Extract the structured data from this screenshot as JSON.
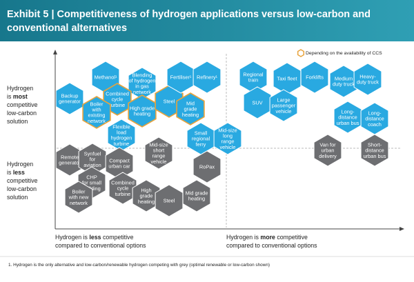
{
  "header": {
    "title_lines": [
      "Exhibit 5 | Competitiveness of hydrogen applications versus low-carbon and",
      "conventional alternatives"
    ]
  },
  "legend": {
    "label": "Depending on the availability of CCS",
    "color": "#e8a33c"
  },
  "y_axis": {
    "top": [
      "Hydrogen",
      "is",
      "most",
      "competitive",
      "low-carbon",
      "solution"
    ],
    "bottom": [
      "Hydrogen",
      "is",
      "less",
      "competitive",
      "low-carbon",
      "solution"
    ]
  },
  "x_axis": {
    "left": [
      "Hydrogen is",
      "less",
      "competitive",
      "compared to conventional options"
    ],
    "right": [
      "Hydrogen is",
      "more",
      "competitive",
      "compared to conventional options"
    ]
  },
  "nodes": [
    {
      "lines": [
        "Backup",
        "generator"
      ],
      "color": "#29a9e1",
      "ccs": false
    },
    {
      "lines": [
        "Methanol¹"
      ],
      "color": "#29a9e1",
      "ccs": false
    },
    {
      "lines": [
        "Blending",
        "of hydrogen",
        "in gas",
        "network"
      ],
      "color": "#29a9e1",
      "ccs": false
    },
    {
      "lines": [
        "Combined",
        "cycle",
        "turbine"
      ],
      "color": "#29a9e1",
      "ccs": true
    },
    {
      "lines": [
        "Boiler",
        "with",
        "existing",
        "network"
      ],
      "color": "#29a9e1",
      "ccs": true
    },
    {
      "lines": [
        "High grade",
        "heating"
      ],
      "color": "#29a9e1",
      "ccs": true
    },
    {
      "lines": [
        "Steel"
      ],
      "color": "#29a9e1",
      "ccs": true
    },
    {
      "lines": [
        "Fertiliser¹"
      ],
      "color": "#29a9e1",
      "ccs": false
    },
    {
      "lines": [
        "Refinery¹"
      ],
      "color": "#29a9e1",
      "ccs": false
    },
    {
      "lines": [
        "Mid",
        "grade",
        "heating"
      ],
      "color": "#29a9e1",
      "ccs": true
    },
    {
      "lines": [
        "Flexible",
        "load",
        "hydrogen",
        "turbine"
      ],
      "color": "#29a9e1",
      "ccs": false
    },
    {
      "lines": [
        "Small",
        "regional",
        "ferry"
      ],
      "color": "#29a9e1",
      "ccs": false
    },
    {
      "lines": [
        "Mid-size",
        "long",
        "range",
        "vehicle"
      ],
      "color": "#29a9e1",
      "ccs": false
    },
    {
      "lines": [
        "Regional",
        "train"
      ],
      "color": "#29a9e1",
      "ccs": false
    },
    {
      "lines": [
        "Taxi fleet"
      ],
      "color": "#29a9e1",
      "ccs": false
    },
    {
      "lines": [
        "Forklifts"
      ],
      "color": "#29a9e1",
      "ccs": false
    },
    {
      "lines": [
        "Medium",
        "duty truck"
      ],
      "color": "#29a9e1",
      "ccs": false
    },
    {
      "lines": [
        "Heavy-",
        "duty truck"
      ],
      "color": "#29a9e1",
      "ccs": false
    },
    {
      "lines": [
        "SUV"
      ],
      "color": "#29a9e1",
      "ccs": false
    },
    {
      "lines": [
        "Large",
        "passenger",
        "vehicle"
      ],
      "color": "#29a9e1",
      "ccs": false
    },
    {
      "lines": [
        "Long-",
        "distance",
        "urban bus"
      ],
      "color": "#29a9e1",
      "ccs": false
    },
    {
      "lines": [
        "Long-",
        "distance",
        "coach"
      ],
      "color": "#29a9e1",
      "ccs": false
    },
    {
      "lines": [
        "Remote",
        "generator"
      ],
      "color": "#6d6e71",
      "ccs": false
    },
    {
      "lines": [
        "Synfuel",
        "for",
        "aviation"
      ],
      "color": "#6d6e71",
      "ccs": false
    },
    {
      "lines": [
        "Compact",
        "urban car"
      ],
      "color": "#6d6e71",
      "ccs": false
    },
    {
      "lines": [
        "Mid-size",
        "short",
        "range",
        "vehicle"
      ],
      "color": "#6d6e71",
      "ccs": false
    },
    {
      "lines": [
        "RoPax"
      ],
      "color": "#6d6e71",
      "ccs": false
    },
    {
      "lines": [
        "CHP",
        "for small",
        "building"
      ],
      "color": "#6d6e71",
      "ccs": false
    },
    {
      "lines": [
        "Combined",
        "cycle",
        "turbine"
      ],
      "color": "#6d6e71",
      "ccs": false
    },
    {
      "lines": [
        "High",
        "grade",
        "heating"
      ],
      "color": "#6d6e71",
      "ccs": false
    },
    {
      "lines": [
        "Steel"
      ],
      "color": "#6d6e71",
      "ccs": false
    },
    {
      "lines": [
        "Mid grade",
        "heating"
      ],
      "color": "#6d6e71",
      "ccs": false
    },
    {
      "lines": [
        "Boiler",
        "with new",
        "network"
      ],
      "color": "#6d6e71",
      "ccs": false
    },
    {
      "lines": [
        "Van for",
        "urban",
        "delivery"
      ],
      "color": "#6d6e71",
      "ccs": false
    },
    {
      "lines": [
        "Short-",
        "distance",
        "urban bus"
      ],
      "color": "#6d6e71",
      "ccs": false
    }
  ],
  "footnote": "1.   Hydrogen is the only alternative and low-carbon/renewable hydrogen competing with grey (optimal renewable or low-carbon shown)"
}
